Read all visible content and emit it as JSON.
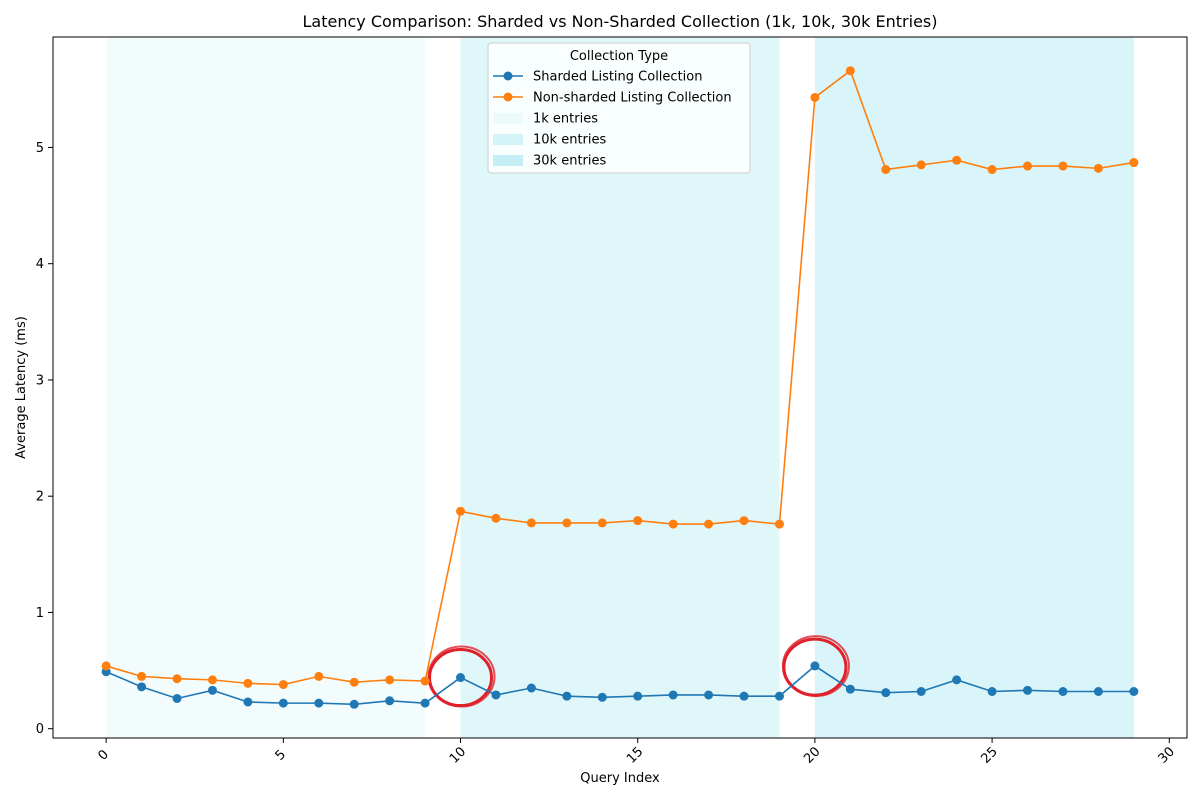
{
  "chart_data": {
    "type": "line",
    "title": "Latency Comparison: Sharded vs Non-Sharded Collection (1k, 10k, 30k Entries)",
    "xlabel": "Query Index",
    "ylabel": "Average Latency (ms)",
    "xlim": [
      -1.5,
      30.5
    ],
    "ylim": [
      -0.08,
      5.95
    ],
    "xticks": [
      0,
      5,
      10,
      15,
      20,
      25,
      30
    ],
    "xtick_labels": [
      "0",
      "5",
      "10",
      "15",
      "20",
      "25",
      "30"
    ],
    "yticks": [
      0,
      1,
      2,
      3,
      4,
      5
    ],
    "ytick_labels": [
      "0",
      "1",
      "2",
      "3",
      "4",
      "5"
    ],
    "grid": false,
    "x": [
      0,
      1,
      2,
      3,
      4,
      5,
      6,
      7,
      8,
      9,
      10,
      11,
      12,
      13,
      14,
      15,
      16,
      17,
      18,
      19,
      20,
      21,
      22,
      23,
      24,
      25,
      26,
      27,
      28,
      29
    ],
    "series": [
      {
        "name": "Sharded Listing Collection",
        "color": "#1f77b4",
        "values": [
          0.49,
          0.36,
          0.26,
          0.33,
          0.23,
          0.22,
          0.22,
          0.21,
          0.24,
          0.22,
          0.44,
          0.29,
          0.35,
          0.28,
          0.27,
          0.28,
          0.29,
          0.29,
          0.28,
          0.28,
          0.54,
          0.34,
          0.31,
          0.32,
          0.42,
          0.32,
          0.33,
          0.32,
          0.32,
          0.32
        ]
      },
      {
        "name": "Non-sharded Listing Collection",
        "color": "#ff7f0e",
        "values": [
          0.54,
          0.45,
          0.43,
          0.42,
          0.39,
          0.38,
          0.45,
          0.4,
          0.42,
          0.41,
          1.87,
          1.81,
          1.77,
          1.77,
          1.77,
          1.79,
          1.76,
          1.76,
          1.79,
          1.76,
          5.43,
          5.66,
          4.81,
          4.85,
          4.89,
          4.81,
          4.84,
          4.84,
          4.82,
          4.87
        ]
      }
    ],
    "bands": [
      {
        "name": "1k entries",
        "x_start": 0,
        "x_end": 9,
        "color": "#e0f7fa",
        "opacity": 0.4
      },
      {
        "name": "10k entries",
        "x_start": 10,
        "x_end": 19,
        "color": "#b2ebf2",
        "opacity": 0.4
      },
      {
        "name": "30k entries",
        "x_start": 20,
        "x_end": 29,
        "color": "#80deea",
        "opacity": 0.3
      }
    ],
    "annotations": [
      {
        "type": "circle",
        "x": 10,
        "y": 0.44,
        "color": "#e0202a"
      },
      {
        "type": "circle",
        "x": 20,
        "y": 0.53,
        "color": "#e0202a"
      }
    ],
    "legend": {
      "title": "Collection Type",
      "placement": "top-center"
    }
  }
}
